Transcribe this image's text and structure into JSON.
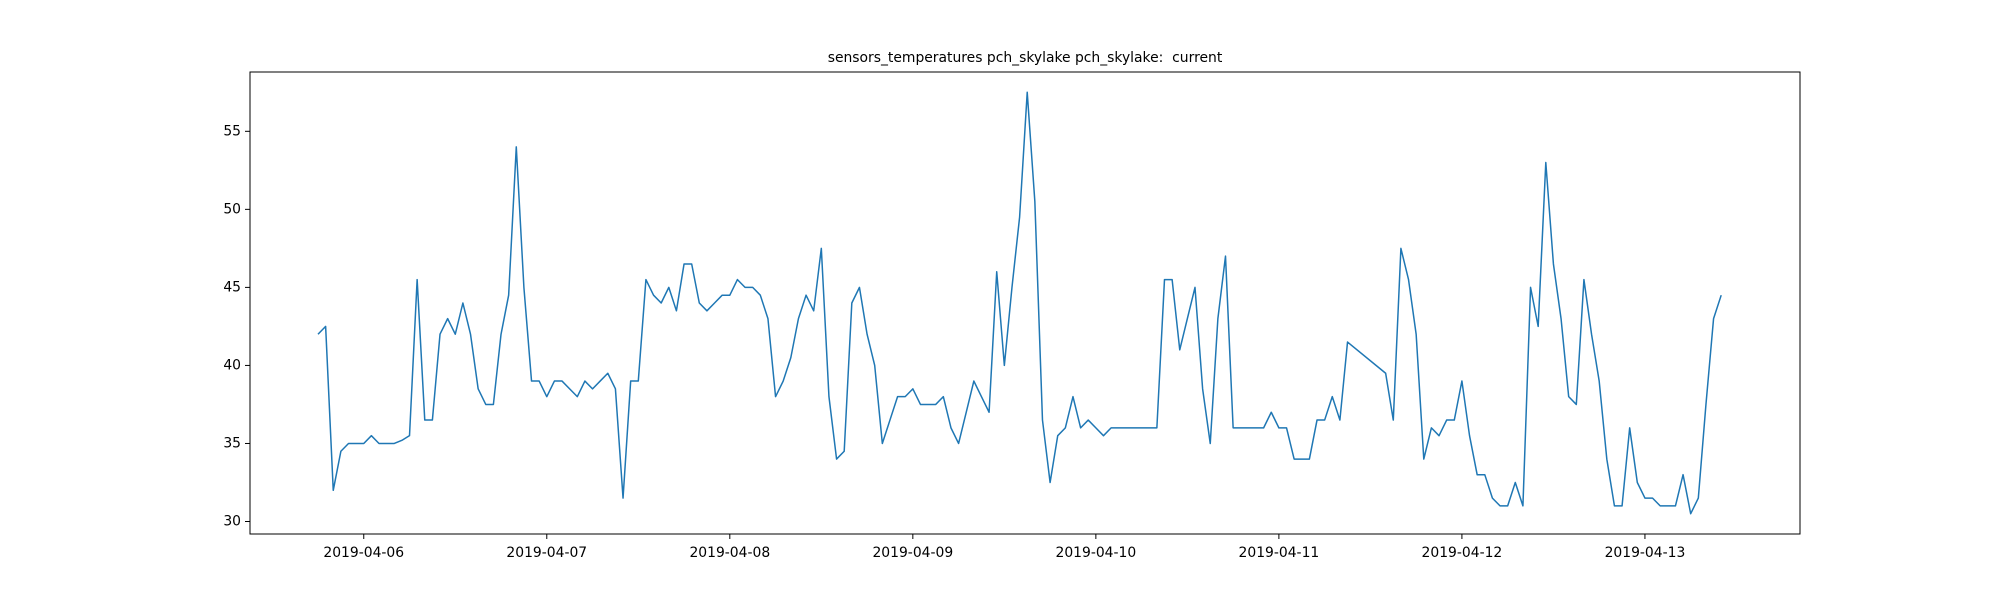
{
  "chart_data": {
    "type": "line",
    "title": "sensors_temperatures pch_skylake pch_skylake:  current",
    "color": "#1f77b4",
    "xlim": [
      "2019-04-05 09:05",
      "2019-04-13 20:20"
    ],
    "xticks": [
      "2019-04-06",
      "2019-04-07",
      "2019-04-08",
      "2019-04-09",
      "2019-04-10",
      "2019-04-11",
      "2019-04-12",
      "2019-04-13"
    ],
    "ylim": [
      29.2,
      58.8
    ],
    "yticks": [
      30,
      35,
      40,
      45,
      50,
      55
    ],
    "grid": false,
    "x": [
      "2019-04-05 18:00",
      "2019-04-05 19:00",
      "2019-04-05 20:00",
      "2019-04-05 21:00",
      "2019-04-05 22:00",
      "2019-04-05 23:00",
      "2019-04-06 00:00",
      "2019-04-06 01:00",
      "2019-04-06 02:00",
      "2019-04-06 03:00",
      "2019-04-06 04:00",
      "2019-04-06 05:00",
      "2019-04-06 06:00",
      "2019-04-06 07:00",
      "2019-04-06 08:00",
      "2019-04-06 09:00",
      "2019-04-06 10:00",
      "2019-04-06 11:00",
      "2019-04-06 12:00",
      "2019-04-06 13:00",
      "2019-04-06 14:00",
      "2019-04-06 15:00",
      "2019-04-06 16:00",
      "2019-04-06 17:00",
      "2019-04-06 18:00",
      "2019-04-06 19:00",
      "2019-04-06 20:00",
      "2019-04-06 21:00",
      "2019-04-06 22:00",
      "2019-04-06 23:00",
      "2019-04-07 00:00",
      "2019-04-07 01:00",
      "2019-04-07 02:00",
      "2019-04-07 03:00",
      "2019-04-07 04:00",
      "2019-04-07 05:00",
      "2019-04-07 06:00",
      "2019-04-07 07:00",
      "2019-04-07 08:00",
      "2019-04-07 09:00",
      "2019-04-07 10:00",
      "2019-04-07 11:00",
      "2019-04-07 12:00",
      "2019-04-07 13:00",
      "2019-04-07 14:00",
      "2019-04-07 15:00",
      "2019-04-07 16:00",
      "2019-04-07 17:00",
      "2019-04-07 18:00",
      "2019-04-07 19:00",
      "2019-04-07 20:00",
      "2019-04-07 21:00",
      "2019-04-07 22:00",
      "2019-04-07 23:00",
      "2019-04-08 00:00",
      "2019-04-08 01:00",
      "2019-04-08 02:00",
      "2019-04-08 03:00",
      "2019-04-08 04:00",
      "2019-04-08 05:00",
      "2019-04-08 06:00",
      "2019-04-08 07:00",
      "2019-04-08 08:00",
      "2019-04-08 09:00",
      "2019-04-08 10:00",
      "2019-04-08 11:00",
      "2019-04-08 12:00",
      "2019-04-08 13:00",
      "2019-04-08 14:00",
      "2019-04-08 15:00",
      "2019-04-08 16:00",
      "2019-04-08 17:00",
      "2019-04-08 18:00",
      "2019-04-08 19:00",
      "2019-04-08 20:00",
      "2019-04-08 21:00",
      "2019-04-08 22:00",
      "2019-04-08 23:00",
      "2019-04-09 00:00",
      "2019-04-09 01:00",
      "2019-04-09 02:00",
      "2019-04-09 03:00",
      "2019-04-09 04:00",
      "2019-04-09 05:00",
      "2019-04-09 06:00",
      "2019-04-09 07:00",
      "2019-04-09 08:00",
      "2019-04-09 09:00",
      "2019-04-09 10:00",
      "2019-04-09 11:00",
      "2019-04-09 12:00",
      "2019-04-09 13:00",
      "2019-04-09 14:00",
      "2019-04-09 15:00",
      "2019-04-09 16:00",
      "2019-04-09 17:00",
      "2019-04-09 18:00",
      "2019-04-09 19:00",
      "2019-04-09 20:00",
      "2019-04-09 21:00",
      "2019-04-09 22:00",
      "2019-04-09 23:00",
      "2019-04-10 00:00",
      "2019-04-10 01:00",
      "2019-04-10 02:00",
      "2019-04-10 03:00",
      "2019-04-10 04:00",
      "2019-04-10 05:00",
      "2019-04-10 06:00",
      "2019-04-10 07:00",
      "2019-04-10 08:00",
      "2019-04-10 09:00",
      "2019-04-10 10:00",
      "2019-04-10 11:00",
      "2019-04-10 12:00",
      "2019-04-10 13:00",
      "2019-04-10 14:00",
      "2019-04-10 15:00",
      "2019-04-10 16:00",
      "2019-04-10 17:00",
      "2019-04-10 18:00",
      "2019-04-10 19:00",
      "2019-04-10 20:00",
      "2019-04-10 21:00",
      "2019-04-10 22:00",
      "2019-04-10 23:00",
      "2019-04-11 00:00",
      "2019-04-11 01:00",
      "2019-04-11 02:00",
      "2019-04-11 03:00",
      "2019-04-11 04:00",
      "2019-04-11 05:00",
      "2019-04-11 06:00",
      "2019-04-11 07:00",
      "2019-04-11 08:00",
      "2019-04-11 09:00",
      "2019-04-11 14:00",
      "2019-04-11 15:00",
      "2019-04-11 16:00",
      "2019-04-11 17:00",
      "2019-04-11 18:00",
      "2019-04-11 19:00",
      "2019-04-11 20:00",
      "2019-04-11 21:00",
      "2019-04-11 22:00",
      "2019-04-11 23:00",
      "2019-04-12 00:00",
      "2019-04-12 01:00",
      "2019-04-12 02:00",
      "2019-04-12 03:00",
      "2019-04-12 04:00",
      "2019-04-12 05:00",
      "2019-04-12 06:00",
      "2019-04-12 07:00",
      "2019-04-12 08:00",
      "2019-04-12 09:00",
      "2019-04-12 10:00",
      "2019-04-12 11:00",
      "2019-04-12 12:00",
      "2019-04-12 13:00",
      "2019-04-12 14:00",
      "2019-04-12 15:00",
      "2019-04-12 16:00",
      "2019-04-12 17:00",
      "2019-04-12 18:00",
      "2019-04-12 19:00",
      "2019-04-12 20:00",
      "2019-04-12 21:00",
      "2019-04-12 22:00",
      "2019-04-12 23:00",
      "2019-04-13 00:00",
      "2019-04-13 01:00",
      "2019-04-13 02:00",
      "2019-04-13 03:00",
      "2019-04-13 04:00",
      "2019-04-13 05:00",
      "2019-04-13 06:00",
      "2019-04-13 07:00",
      "2019-04-13 08:00",
      "2019-04-13 09:00",
      "2019-04-13 10:00"
    ],
    "values": [
      42.0,
      42.5,
      32.0,
      34.5,
      35.0,
      35.0,
      35.0,
      35.5,
      35.0,
      35.0,
      35.0,
      35.2,
      35.5,
      45.5,
      36.5,
      36.5,
      42.0,
      43.0,
      42.0,
      44.0,
      42.0,
      38.5,
      37.5,
      37.5,
      42.0,
      44.5,
      54.0,
      45.0,
      39.0,
      39.0,
      38.0,
      39.0,
      39.0,
      38.5,
      38.0,
      39.0,
      38.5,
      39.0,
      39.5,
      38.5,
      31.5,
      39.0,
      39.0,
      45.5,
      44.5,
      44.0,
      45.0,
      43.5,
      46.5,
      46.5,
      44.0,
      43.5,
      44.0,
      44.5,
      44.5,
      45.5,
      45.0,
      45.0,
      44.5,
      43.0,
      38.0,
      39.0,
      40.5,
      43.0,
      44.5,
      43.5,
      47.5,
      38.0,
      34.0,
      34.5,
      44.0,
      45.0,
      42.0,
      40.0,
      35.0,
      36.5,
      38.0,
      38.0,
      38.5,
      37.5,
      37.5,
      37.5,
      38.0,
      36.0,
      35.0,
      37.0,
      39.0,
      38.0,
      37.0,
      46.0,
      40.0,
      45.0,
      49.5,
      57.5,
      50.5,
      36.5,
      32.5,
      35.5,
      36.0,
      38.0,
      36.0,
      36.5,
      36.0,
      35.5,
      36.0,
      36.0,
      36.0,
      36.0,
      36.0,
      36.0,
      36.0,
      45.5,
      45.5,
      41.0,
      43.0,
      45.0,
      38.5,
      35.0,
      43.0,
      47.0,
      36.0,
      36.0,
      36.0,
      36.0,
      36.0,
      37.0,
      36.0,
      36.0,
      34.0,
      34.0,
      34.0,
      36.5,
      36.5,
      38.0,
      36.5,
      41.5,
      39.5,
      36.5,
      47.5,
      45.5,
      42.0,
      34.0,
      36.0,
      35.5,
      36.5,
      36.5,
      39.0,
      35.5,
      33.0,
      33.0,
      31.5,
      31.0,
      31.0,
      32.5,
      31.0,
      45.0,
      42.5,
      53.0,
      46.5,
      43.0,
      38.0,
      37.5,
      45.5,
      42.0,
      39.0,
      34.0,
      31.0,
      31.0,
      36.0,
      32.5,
      31.5,
      31.5,
      31.0,
      31.0,
      31.0,
      33.0,
      30.5,
      31.5,
      37.5,
      43.0,
      44.5
    ]
  }
}
